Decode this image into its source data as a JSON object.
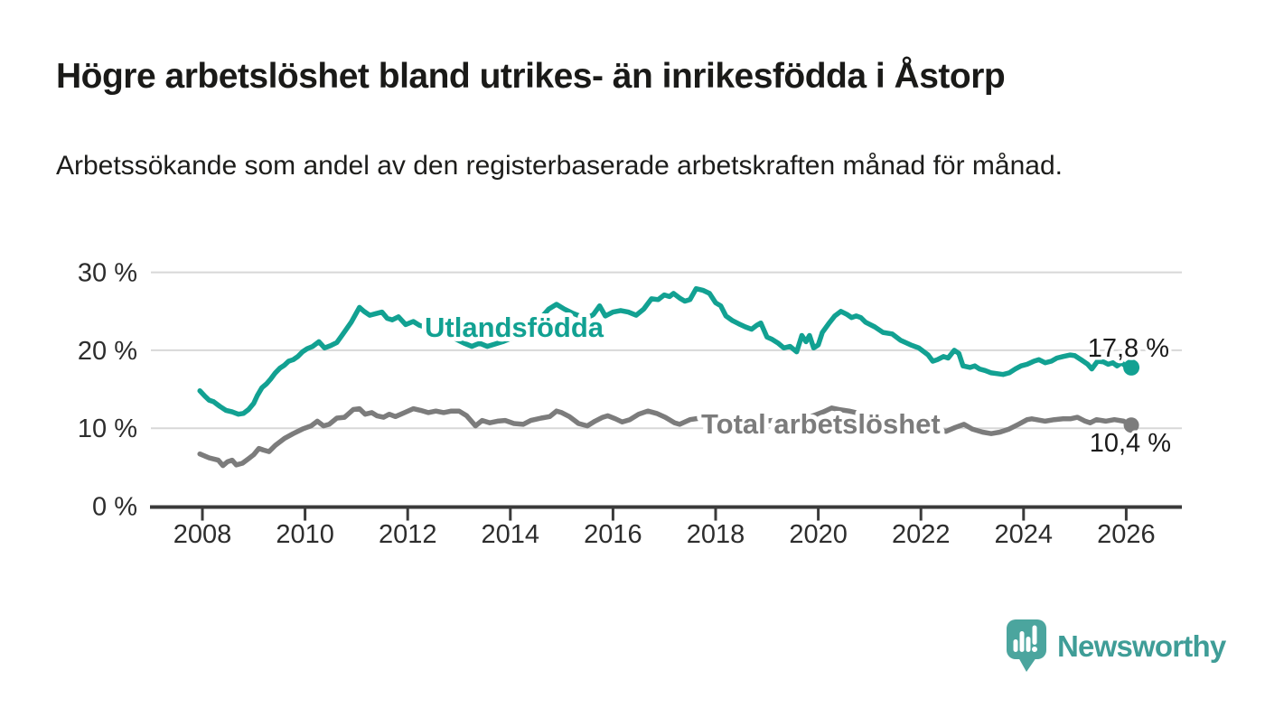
{
  "page": {
    "title": "Högre arbetslöshet bland utrikes- än inrikesfödda i Åstorp",
    "subtitle": "Arbetssökande som andel av den registerbaserade arbetskraften månad för månad."
  },
  "branding": {
    "name": "Newsworthy",
    "icon": "newsworthy-bubble-barchart-icon",
    "icon_color": "#4ba59e",
    "text_color": "#3f9d97"
  },
  "colors": {
    "foreign_born_line": "#12a192",
    "total_line": "#7c7c7c",
    "grid": "#d8d8d8",
    "axis": "#3a3a3a",
    "axis_text": "#2d2d2d",
    "value_label_text": "#1a1a1a"
  },
  "chart_data": {
    "type": "line",
    "title": "Högre arbetslöshet bland utrikes- än inrikesfödda i Åstorp",
    "subtitle": "Arbetssökande som andel av den registerbaserade arbetskraften månad för månad.",
    "unit": "%",
    "legend": "inline-labels",
    "grid": true,
    "x_axis": {
      "range": [
        2007.0,
        2027.0
      ],
      "ticks": [
        {
          "v": 2008,
          "label": "2008"
        },
        {
          "v": 2010,
          "label": "2010"
        },
        {
          "v": 2012,
          "label": "2012"
        },
        {
          "v": 2014,
          "label": "2014"
        },
        {
          "v": 2016,
          "label": "2016"
        },
        {
          "v": 2018,
          "label": "2018"
        },
        {
          "v": 2020,
          "label": "2020"
        },
        {
          "v": 2022,
          "label": "2022"
        },
        {
          "v": 2024,
          "label": "2024"
        },
        {
          "v": 2026,
          "label": "2026"
        }
      ]
    },
    "y_axis": {
      "range": [
        0,
        31
      ],
      "ticks": [
        {
          "v": 0,
          "label": "0 %"
        },
        {
          "v": 10,
          "label": "10 %"
        },
        {
          "v": 20,
          "label": "20 %"
        },
        {
          "v": 30,
          "label": "30 %"
        }
      ]
    },
    "series": [
      {
        "id": "utlandsfodda",
        "name": "Utlandsfödda",
        "color": "#12a192",
        "end_label": "17,8 %",
        "end_value": 17.8,
        "points": [
          [
            2007.95,
            14.8
          ],
          [
            2008.05,
            14.1
          ],
          [
            2008.13,
            13.6
          ],
          [
            2008.22,
            13.4
          ],
          [
            2008.34,
            12.8
          ],
          [
            2008.46,
            12.3
          ],
          [
            2008.58,
            12.1
          ],
          [
            2008.7,
            11.8
          ],
          [
            2008.8,
            11.9
          ],
          [
            2008.9,
            12.4
          ],
          [
            2009.0,
            13.2
          ],
          [
            2009.07,
            14.2
          ],
          [
            2009.16,
            15.2
          ],
          [
            2009.25,
            15.7
          ],
          [
            2009.33,
            16.3
          ],
          [
            2009.42,
            17.1
          ],
          [
            2009.51,
            17.7
          ],
          [
            2009.6,
            18.1
          ],
          [
            2009.68,
            18.6
          ],
          [
            2009.77,
            18.8
          ],
          [
            2009.86,
            19.2
          ],
          [
            2009.95,
            19.8
          ],
          [
            2010.04,
            20.2
          ],
          [
            2010.15,
            20.5
          ],
          [
            2010.27,
            21.1
          ],
          [
            2010.38,
            20.3
          ],
          [
            2010.5,
            20.6
          ],
          [
            2010.62,
            21.0
          ],
          [
            2010.74,
            22.1
          ],
          [
            2010.9,
            23.6
          ],
          [
            2011.06,
            25.5
          ],
          [
            2011.15,
            25.0
          ],
          [
            2011.26,
            24.5
          ],
          [
            2011.38,
            24.7
          ],
          [
            2011.5,
            24.9
          ],
          [
            2011.6,
            24.1
          ],
          [
            2011.7,
            23.9
          ],
          [
            2011.82,
            24.3
          ],
          [
            2011.96,
            23.3
          ],
          [
            2012.11,
            23.7
          ],
          [
            2012.23,
            23.2
          ],
          [
            2012.38,
            22.9
          ],
          [
            2012.53,
            22.6
          ],
          [
            2012.68,
            22.2
          ],
          [
            2012.83,
            21.8
          ],
          [
            2012.98,
            21.3
          ],
          [
            2013.1,
            20.9
          ],
          [
            2013.25,
            20.5
          ],
          [
            2013.4,
            20.9
          ],
          [
            2013.55,
            20.5
          ],
          [
            2013.7,
            20.8
          ],
          [
            2013.85,
            21.1
          ],
          [
            2014.0,
            21.5
          ],
          [
            2014.15,
            22.0
          ],
          [
            2014.3,
            22.6
          ],
          [
            2014.45,
            23.3
          ],
          [
            2014.6,
            24.2
          ],
          [
            2014.75,
            25.3
          ],
          [
            2014.9,
            25.9
          ],
          [
            2015.05,
            25.3
          ],
          [
            2015.2,
            24.8
          ],
          [
            2015.35,
            24.4
          ],
          [
            2015.5,
            24.1
          ],
          [
            2015.62,
            24.6
          ],
          [
            2015.74,
            25.7
          ],
          [
            2015.85,
            24.4
          ],
          [
            2016.0,
            24.9
          ],
          [
            2016.15,
            25.1
          ],
          [
            2016.3,
            24.9
          ],
          [
            2016.45,
            24.5
          ],
          [
            2016.6,
            25.3
          ],
          [
            2016.75,
            26.6
          ],
          [
            2016.88,
            26.5
          ],
          [
            2017.0,
            27.1
          ],
          [
            2017.1,
            26.9
          ],
          [
            2017.18,
            27.3
          ],
          [
            2017.3,
            26.7
          ],
          [
            2017.4,
            26.3
          ],
          [
            2017.5,
            26.5
          ],
          [
            2017.62,
            27.9
          ],
          [
            2017.75,
            27.7
          ],
          [
            2017.88,
            27.3
          ],
          [
            2018.0,
            26.1
          ],
          [
            2018.1,
            25.7
          ],
          [
            2018.2,
            24.4
          ],
          [
            2018.33,
            23.8
          ],
          [
            2018.45,
            23.4
          ],
          [
            2018.58,
            23.0
          ],
          [
            2018.7,
            22.7
          ],
          [
            2018.8,
            23.2
          ],
          [
            2018.88,
            23.5
          ],
          [
            2019.0,
            21.7
          ],
          [
            2019.1,
            21.4
          ],
          [
            2019.22,
            20.9
          ],
          [
            2019.33,
            20.3
          ],
          [
            2019.45,
            20.5
          ],
          [
            2019.58,
            19.8
          ],
          [
            2019.68,
            21.9
          ],
          [
            2019.76,
            21.1
          ],
          [
            2019.83,
            21.9
          ],
          [
            2019.91,
            20.3
          ],
          [
            2020.0,
            20.7
          ],
          [
            2020.08,
            22.3
          ],
          [
            2020.2,
            23.4
          ],
          [
            2020.32,
            24.4
          ],
          [
            2020.44,
            25.0
          ],
          [
            2020.56,
            24.6
          ],
          [
            2020.65,
            24.2
          ],
          [
            2020.74,
            24.4
          ],
          [
            2020.83,
            24.2
          ],
          [
            2020.92,
            23.6
          ],
          [
            2021.1,
            23.0
          ],
          [
            2021.26,
            22.3
          ],
          [
            2021.44,
            22.1
          ],
          [
            2021.6,
            21.3
          ],
          [
            2021.8,
            20.7
          ],
          [
            2021.96,
            20.3
          ],
          [
            2022.14,
            19.4
          ],
          [
            2022.23,
            18.6
          ],
          [
            2022.32,
            18.8
          ],
          [
            2022.44,
            19.2
          ],
          [
            2022.53,
            19.0
          ],
          [
            2022.65,
            20.0
          ],
          [
            2022.74,
            19.6
          ],
          [
            2022.82,
            18.0
          ],
          [
            2022.96,
            17.8
          ],
          [
            2023.05,
            18.0
          ],
          [
            2023.14,
            17.6
          ],
          [
            2023.25,
            17.4
          ],
          [
            2023.37,
            17.1
          ],
          [
            2023.49,
            17.0
          ],
          [
            2023.6,
            16.9
          ],
          [
            2023.72,
            17.1
          ],
          [
            2023.84,
            17.6
          ],
          [
            2023.95,
            18.0
          ],
          [
            2024.07,
            18.2
          ],
          [
            2024.2,
            18.6
          ],
          [
            2024.3,
            18.8
          ],
          [
            2024.42,
            18.4
          ],
          [
            2024.54,
            18.6
          ],
          [
            2024.65,
            19.0
          ],
          [
            2024.77,
            19.2
          ],
          [
            2024.91,
            19.4
          ],
          [
            2025.0,
            19.3
          ],
          [
            2025.12,
            18.8
          ],
          [
            2025.25,
            18.2
          ],
          [
            2025.33,
            17.6
          ],
          [
            2025.44,
            18.6
          ],
          [
            2025.56,
            18.5
          ],
          [
            2025.65,
            18.2
          ],
          [
            2025.74,
            18.4
          ],
          [
            2025.82,
            18.0
          ],
          [
            2025.91,
            18.4
          ],
          [
            2026.0,
            17.9
          ],
          [
            2026.1,
            17.8
          ]
        ]
      },
      {
        "id": "total",
        "name": "Total arbetslöshet",
        "color": "#7c7c7c",
        "end_label": "10,4 %",
        "end_value": 10.4,
        "points": [
          [
            2007.95,
            6.7
          ],
          [
            2008.13,
            6.2
          ],
          [
            2008.31,
            5.9
          ],
          [
            2008.4,
            5.2
          ],
          [
            2008.49,
            5.7
          ],
          [
            2008.58,
            5.9
          ],
          [
            2008.66,
            5.3
          ],
          [
            2008.78,
            5.5
          ],
          [
            2008.9,
            6.1
          ],
          [
            2009.0,
            6.6
          ],
          [
            2009.1,
            7.4
          ],
          [
            2009.19,
            7.2
          ],
          [
            2009.3,
            7.0
          ],
          [
            2009.42,
            7.8
          ],
          [
            2009.6,
            8.7
          ],
          [
            2009.77,
            9.3
          ],
          [
            2009.95,
            9.9
          ],
          [
            2010.12,
            10.3
          ],
          [
            2010.24,
            10.9
          ],
          [
            2010.36,
            10.3
          ],
          [
            2010.47,
            10.5
          ],
          [
            2010.62,
            11.3
          ],
          [
            2010.77,
            11.4
          ],
          [
            2010.94,
            12.4
          ],
          [
            2011.06,
            12.5
          ],
          [
            2011.17,
            11.8
          ],
          [
            2011.3,
            12.0
          ],
          [
            2011.4,
            11.6
          ],
          [
            2011.53,
            11.4
          ],
          [
            2011.64,
            11.8
          ],
          [
            2011.76,
            11.5
          ],
          [
            2011.94,
            12.0
          ],
          [
            2012.11,
            12.5
          ],
          [
            2012.25,
            12.3
          ],
          [
            2012.4,
            12.0
          ],
          [
            2012.55,
            12.2
          ],
          [
            2012.7,
            12.0
          ],
          [
            2012.85,
            12.2
          ],
          [
            2013.0,
            12.2
          ],
          [
            2013.15,
            11.6
          ],
          [
            2013.32,
            10.3
          ],
          [
            2013.45,
            11.0
          ],
          [
            2013.6,
            10.7
          ],
          [
            2013.75,
            10.9
          ],
          [
            2013.9,
            11.0
          ],
          [
            2014.07,
            10.6
          ],
          [
            2014.25,
            10.5
          ],
          [
            2014.4,
            11.0
          ],
          [
            2014.6,
            11.3
          ],
          [
            2014.77,
            11.5
          ],
          [
            2014.9,
            12.2
          ],
          [
            2015.0,
            12.0
          ],
          [
            2015.15,
            11.5
          ],
          [
            2015.33,
            10.6
          ],
          [
            2015.5,
            10.3
          ],
          [
            2015.65,
            10.9
          ],
          [
            2015.8,
            11.4
          ],
          [
            2015.9,
            11.6
          ],
          [
            2016.05,
            11.2
          ],
          [
            2016.18,
            10.8
          ],
          [
            2016.33,
            11.1
          ],
          [
            2016.5,
            11.8
          ],
          [
            2016.68,
            12.2
          ],
          [
            2016.85,
            11.9
          ],
          [
            2017.02,
            11.4
          ],
          [
            2017.2,
            10.7
          ],
          [
            2017.3,
            10.5
          ],
          [
            2017.5,
            11.1
          ],
          [
            2017.7,
            11.3
          ],
          [
            2017.9,
            11.1
          ],
          [
            2018.1,
            10.9
          ],
          [
            2018.3,
            10.7
          ],
          [
            2018.5,
            10.6
          ],
          [
            2018.7,
            10.7
          ],
          [
            2018.9,
            10.9
          ],
          [
            2019.1,
            11.0
          ],
          [
            2019.3,
            11.1
          ],
          [
            2019.5,
            11.0
          ],
          [
            2019.7,
            11.2
          ],
          [
            2019.9,
            11.6
          ],
          [
            2020.1,
            12.1
          ],
          [
            2020.26,
            12.6
          ],
          [
            2020.4,
            12.4
          ],
          [
            2020.6,
            12.2
          ],
          [
            2020.8,
            11.9
          ],
          [
            2021.0,
            11.6
          ],
          [
            2021.2,
            11.3
          ],
          [
            2021.4,
            11.0
          ],
          [
            2021.6,
            10.7
          ],
          [
            2021.8,
            10.4
          ],
          [
            2022.0,
            10.1
          ],
          [
            2022.2,
            9.9
          ],
          [
            2022.35,
            9.8
          ],
          [
            2022.49,
            9.6
          ],
          [
            2022.67,
            10.1
          ],
          [
            2022.84,
            10.5
          ],
          [
            2023.0,
            9.9
          ],
          [
            2023.2,
            9.5
          ],
          [
            2023.37,
            9.3
          ],
          [
            2023.54,
            9.5
          ],
          [
            2023.72,
            9.9
          ],
          [
            2023.9,
            10.5
          ],
          [
            2024.07,
            11.1
          ],
          [
            2024.16,
            11.2
          ],
          [
            2024.25,
            11.1
          ],
          [
            2024.42,
            10.9
          ],
          [
            2024.6,
            11.1
          ],
          [
            2024.77,
            11.2
          ],
          [
            2024.91,
            11.2
          ],
          [
            2025.05,
            11.4
          ],
          [
            2025.2,
            10.9
          ],
          [
            2025.3,
            10.7
          ],
          [
            2025.42,
            11.1
          ],
          [
            2025.6,
            10.9
          ],
          [
            2025.77,
            11.1
          ],
          [
            2025.95,
            10.9
          ],
          [
            2026.1,
            10.4
          ]
        ]
      }
    ]
  }
}
